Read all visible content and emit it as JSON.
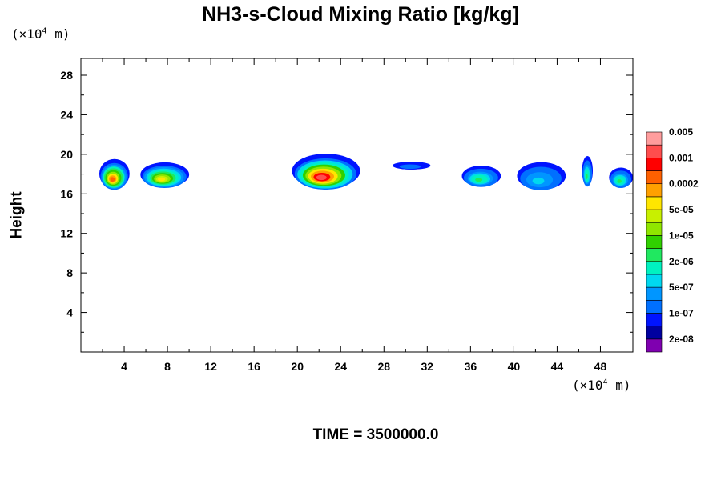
{
  "title": "NH3-s-Cloud Mixing Ratio [kg/kg]",
  "y_unit_prefix": "(×10",
  "y_unit_exp": "4",
  "y_unit_suffix": " m)",
  "x_unit_prefix": "(×10",
  "x_unit_exp": "4",
  "x_unit_suffix": " m)",
  "time_label": "TIME = 3500000.0",
  "chart_data": {
    "type": "heatmap",
    "title": "NH3-s-Cloud Mixing Ratio [kg/kg]",
    "ylabel": "Height",
    "xlabel": "",
    "xlim": [
      0,
      51
    ],
    "ylim": [
      0,
      29.7
    ],
    "x_ticks": [
      4,
      8,
      12,
      16,
      20,
      24,
      28,
      32,
      36,
      40,
      44,
      48
    ],
    "y_ticks": [
      4,
      8,
      12,
      16,
      20,
      24,
      28
    ],
    "colorbar": {
      "colors": [
        "#7f00b0",
        "#0000a0",
        "#0014ff",
        "#0070ff",
        "#0096ff",
        "#00d8f0",
        "#00f2c0",
        "#20e860",
        "#30d000",
        "#90e600",
        "#c8f000",
        "#ffe600",
        "#ffa000",
        "#ff6000",
        "#ff0000",
        "#ff4d4d",
        "#ff9d9d"
      ],
      "labels": [
        "2e-08",
        "1e-07",
        "5e-07",
        "2e-06",
        "1e-05",
        "5e-05",
        "0.0002",
        "0.001",
        "0.005"
      ]
    },
    "cloud_regions": [
      {
        "x_range": [
          1.7,
          4.5
        ],
        "y_range": [
          16.3,
          19.3
        ],
        "max_level": "0.0002"
      },
      {
        "x_range": [
          5.5,
          10.0
        ],
        "y_range": [
          16.5,
          19.0
        ],
        "max_level": "5e-05"
      },
      {
        "x_range": [
          19.5,
          25.8
        ],
        "y_range": [
          16.3,
          19.8
        ],
        "max_level": "0.001"
      },
      {
        "x_range": [
          28.8,
          32.3
        ],
        "y_range": [
          18.4,
          19.2
        ],
        "max_level": "1e-07"
      },
      {
        "x_range": [
          35.2,
          38.8
        ],
        "y_range": [
          16.6,
          18.7
        ],
        "max_level": "2e-06"
      },
      {
        "x_range": [
          40.3,
          44.8
        ],
        "y_range": [
          16.2,
          19.0
        ],
        "max_level": "5e-07"
      },
      {
        "x_range": [
          46.3,
          47.3
        ],
        "y_range": [
          16.6,
          19.6
        ],
        "max_level": "2e-06"
      },
      {
        "x_range": [
          48.8,
          51.0
        ],
        "y_range": [
          16.5,
          18.5
        ],
        "max_level": "2e-06"
      }
    ]
  }
}
